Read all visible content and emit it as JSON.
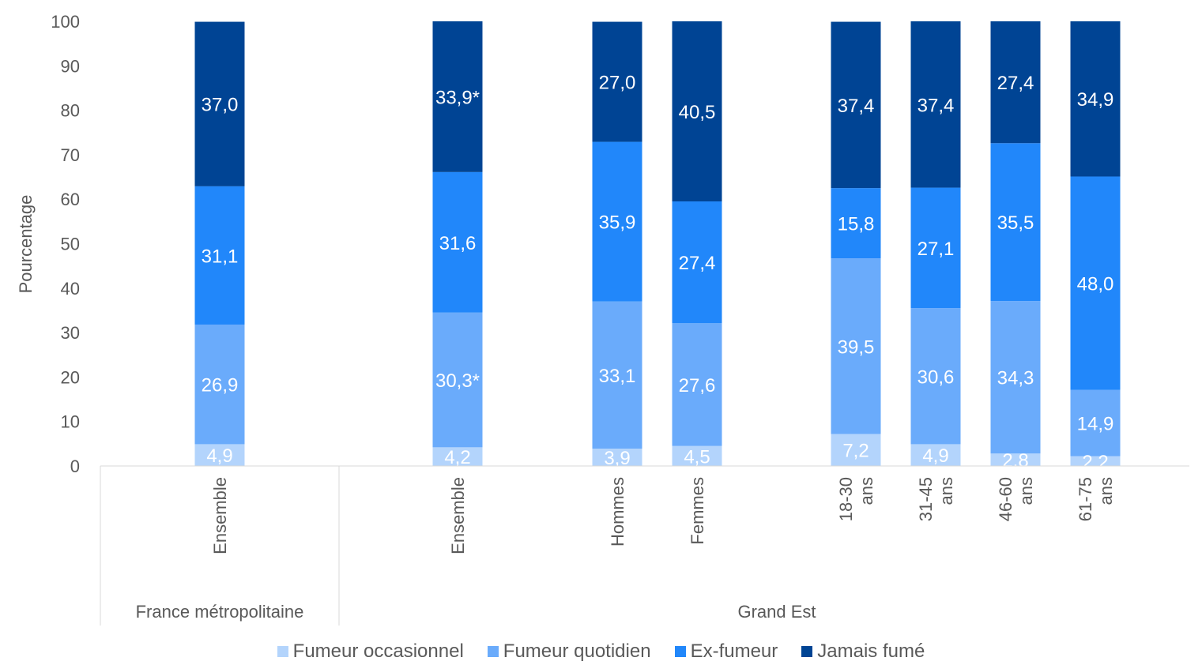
{
  "chart_data": {
    "type": "bar",
    "stacked": true,
    "ylabel": "Pourcentage",
    "ylim": [
      0,
      100
    ],
    "yticks": [
      "0",
      "10",
      "20",
      "30",
      "40",
      "50",
      "60",
      "70",
      "80",
      "90",
      "100"
    ],
    "groups": [
      "France métropolitaine",
      "Grand Est"
    ],
    "categories": [
      {
        "label": [
          "Ensemble"
        ],
        "group": 0
      },
      {
        "label": [
          "Ensemble"
        ],
        "group": 1
      },
      {
        "label": [
          "Hommes"
        ],
        "group": 1
      },
      {
        "label": [
          "Femmes"
        ],
        "group": 1
      },
      {
        "label": [
          "18-30",
          "ans"
        ],
        "group": 1
      },
      {
        "label": [
          "31-45",
          "ans"
        ],
        "group": 1
      },
      {
        "label": [
          "46-60",
          "ans"
        ],
        "group": 1
      },
      {
        "label": [
          "61-75",
          "ans"
        ],
        "group": 1
      }
    ],
    "series": [
      {
        "name": "Fumeur occasionnel",
        "color": "#b3d4fc",
        "values": [
          4.9,
          4.2,
          3.9,
          4.5,
          7.2,
          4.9,
          2.8,
          2.2
        ],
        "labels": [
          "4,9",
          "4,2",
          "3,9",
          "4,5",
          "7,2",
          "4,9",
          "2,8",
          "2,2"
        ]
      },
      {
        "name": "Fumeur quotidien",
        "color": "#6aabfb",
        "values": [
          26.9,
          30.3,
          33.1,
          27.6,
          39.5,
          30.6,
          34.3,
          14.9
        ],
        "labels": [
          "26,9",
          "30,3*",
          "33,1",
          "27,6",
          "39,5",
          "30,6",
          "34,3",
          "14,9"
        ]
      },
      {
        "name": "Ex-fumeur",
        "color": "#2187fa",
        "values": [
          31.1,
          31.6,
          35.9,
          27.4,
          15.8,
          27.1,
          35.5,
          48.0
        ],
        "labels": [
          "31,1",
          "31,6",
          "35,9",
          "27,4",
          "15,8",
          "27,1",
          "35,5",
          "48,0"
        ]
      },
      {
        "name": "Jamais fumé",
        "color": "#004494",
        "values": [
          37.0,
          33.9,
          27.0,
          40.5,
          37.4,
          37.4,
          27.4,
          34.9
        ],
        "labels": [
          "37,0",
          "33,9*",
          "27,0",
          "40,5",
          "37,4",
          "37,4",
          "27,4",
          "34,9"
        ]
      }
    ],
    "grid": false,
    "legend_position": "bottom"
  }
}
